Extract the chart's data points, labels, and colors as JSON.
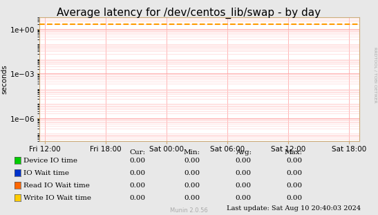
{
  "title": "Average latency for /dev/centos_lib/swap - by day",
  "ylabel": "seconds",
  "background_color": "#e8e8e8",
  "plot_bg_color": "#ffffff",
  "grid_major_color": "#ff9999",
  "grid_minor_color": "#ffcccc",
  "x_ticks_labels": [
    "Fri 12:00",
    "Fri 18:00",
    "Sat 00:00",
    "Sat 06:00",
    "Sat 12:00",
    "Sat 18:00"
  ],
  "x_ticks_pos": [
    0,
    6,
    12,
    18,
    24,
    30
  ],
  "x_min": -0.5,
  "x_max": 31,
  "y_min": 3e-08,
  "y_max": 6.0,
  "dashed_line_y": 2.0,
  "dashed_line_color": "#ff9900",
  "legend_items": [
    {
      "label": "Device IO time",
      "color": "#00cc00"
    },
    {
      "label": "IO Wait time",
      "color": "#0033cc"
    },
    {
      "label": "Read IO Wait time",
      "color": "#ff6600"
    },
    {
      "label": "Write IO Wait time",
      "color": "#ffcc00"
    }
  ],
  "table_headers": [
    "Cur:",
    "Min:",
    "Avg:",
    "Max:"
  ],
  "table_values": [
    [
      "0.00",
      "0.00",
      "0.00",
      "0.00"
    ],
    [
      "0.00",
      "0.00",
      "0.00",
      "0.00"
    ],
    [
      "0.00",
      "0.00",
      "0.00",
      "0.00"
    ],
    [
      "0.00",
      "0.00",
      "0.00",
      "0.00"
    ]
  ],
  "last_update": "Last update: Sat Aug 10 20:40:03 2024",
  "watermark": "Munin 2.0.56",
  "rrdtool_label": "RRDTOOL / TOBI OETIKER",
  "title_fontsize": 11,
  "axis_fontsize": 7.5,
  "legend_fontsize": 7.5,
  "table_fontsize": 7.5
}
